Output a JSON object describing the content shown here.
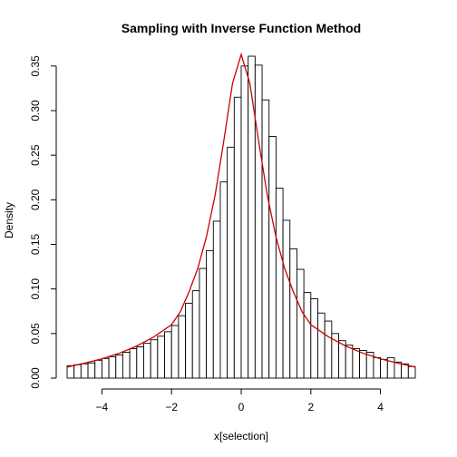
{
  "chart_data": {
    "type": "bar",
    "title": "Sampling with Inverse Function Method",
    "xlabel": "x[selection]",
    "ylabel": "Density",
    "xlim": [
      -5,
      5
    ],
    "ylim": [
      0,
      0.36
    ],
    "x_ticks": [
      -4,
      -2,
      0,
      2,
      4
    ],
    "x_tick_labels": [
      "−4",
      "−2",
      "0",
      "2",
      "4"
    ],
    "y_ticks": [
      0,
      0.05,
      0.1,
      0.15,
      0.2,
      0.25,
      0.3,
      0.35
    ],
    "y_tick_labels": [
      "0.00",
      "0.05",
      "0.10",
      "0.15",
      "0.20",
      "0.25",
      "0.30",
      "0.35"
    ],
    "bin_width": 0.2,
    "bins_start": -5,
    "values": [
      0.014,
      0.015,
      0.016,
      0.017,
      0.02,
      0.022,
      0.024,
      0.026,
      0.029,
      0.033,
      0.035,
      0.039,
      0.043,
      0.047,
      0.052,
      0.059,
      0.07,
      0.084,
      0.098,
      0.123,
      0.143,
      0.176,
      0.22,
      0.259,
      0.315,
      0.35,
      0.361,
      0.351,
      0.312,
      0.271,
      0.213,
      0.177,
      0.145,
      0.122,
      0.096,
      0.089,
      0.073,
      0.064,
      0.05,
      0.042,
      0.037,
      0.033,
      0.031,
      0.029,
      0.023,
      0.021,
      0.023,
      0.018,
      0.016,
      0.013
    ],
    "curve": {
      "color": "#cc0000",
      "x": [
        -5.0,
        -4.5,
        -4.0,
        -3.5,
        -3.0,
        -2.5,
        -2.0,
        -1.75,
        -1.5,
        -1.25,
        -1.0,
        -0.75,
        -0.5,
        -0.25,
        0.0,
        0.25,
        0.5,
        0.75,
        1.0,
        1.25,
        1.5,
        1.75,
        2.0,
        2.5,
        3.0,
        3.5,
        4.0,
        4.5,
        5.0
      ],
      "y": [
        0.0124,
        0.0168,
        0.0216,
        0.0279,
        0.036,
        0.0465,
        0.06,
        0.0743,
        0.0965,
        0.1228,
        0.1582,
        0.2049,
        0.266,
        0.3304,
        0.363,
        0.3304,
        0.266,
        0.2049,
        0.1582,
        0.1228,
        0.0965,
        0.0743,
        0.06,
        0.0465,
        0.036,
        0.0279,
        0.0216,
        0.0168,
        0.0124
      ]
    }
  }
}
